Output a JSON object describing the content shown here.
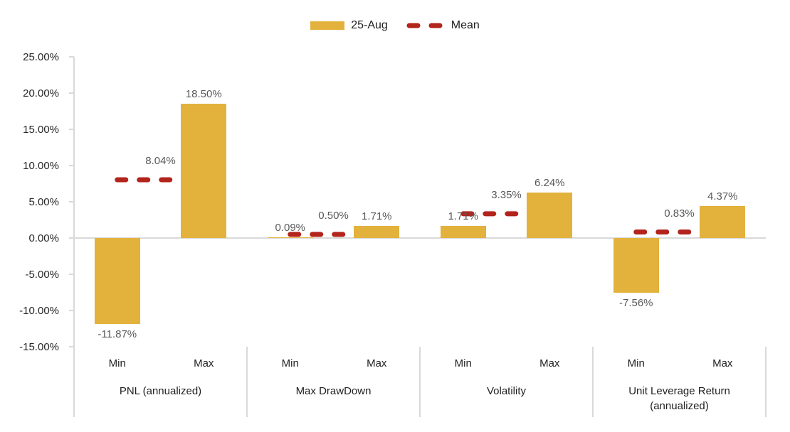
{
  "legend": {
    "items": [
      {
        "label": "25-Aug",
        "marker": "bar-swatch",
        "color": "#E2B23D"
      },
      {
        "label": "Mean",
        "marker": "dash-line",
        "color": "#B2241C"
      }
    ]
  },
  "chart_data": {
    "type": "bar",
    "title": "",
    "series_name": "25-Aug",
    "mean_series_name": "Mean",
    "categories": [
      "Min",
      "Max"
    ],
    "groups": [
      {
        "label": "PNL (annualized)",
        "min": -11.87,
        "max": 18.5,
        "mean": 8.04,
        "min_label": "-11.87%",
        "max_label": "18.50%",
        "mean_label": "8.04%"
      },
      {
        "label": "Max DrawDown",
        "min": 0.09,
        "max": 1.71,
        "mean": 0.5,
        "min_label": "0.09%",
        "max_label": "1.71%",
        "mean_label": "0.50%"
      },
      {
        "label": "Volatility",
        "min": 1.71,
        "max": 6.24,
        "mean": 3.35,
        "min_label": "1.71%",
        "max_label": "6.24%",
        "mean_label": "3.35%"
      },
      {
        "label": "Unit Leverage Return\n(annualized)",
        "min": -7.56,
        "max": 4.37,
        "mean": 0.83,
        "min_label": "-7.56%",
        "max_label": "4.37%",
        "mean_label": "0.83%"
      }
    ],
    "y_axis": {
      "min": -15,
      "max": 25,
      "step": 5,
      "tick_labels": [
        "25.00%",
        "20.00%",
        "15.00%",
        "10.00%",
        "5.00%",
        "0.00%",
        "-5.00%",
        "-10.00%",
        "-15.00%"
      ]
    },
    "ylim": [
      -15,
      25
    ],
    "gridlines": false,
    "legend_position": "top",
    "bar_color": "#E2B23D",
    "mean_color": "#B2241C",
    "axis_color": "#D9D9D9"
  }
}
